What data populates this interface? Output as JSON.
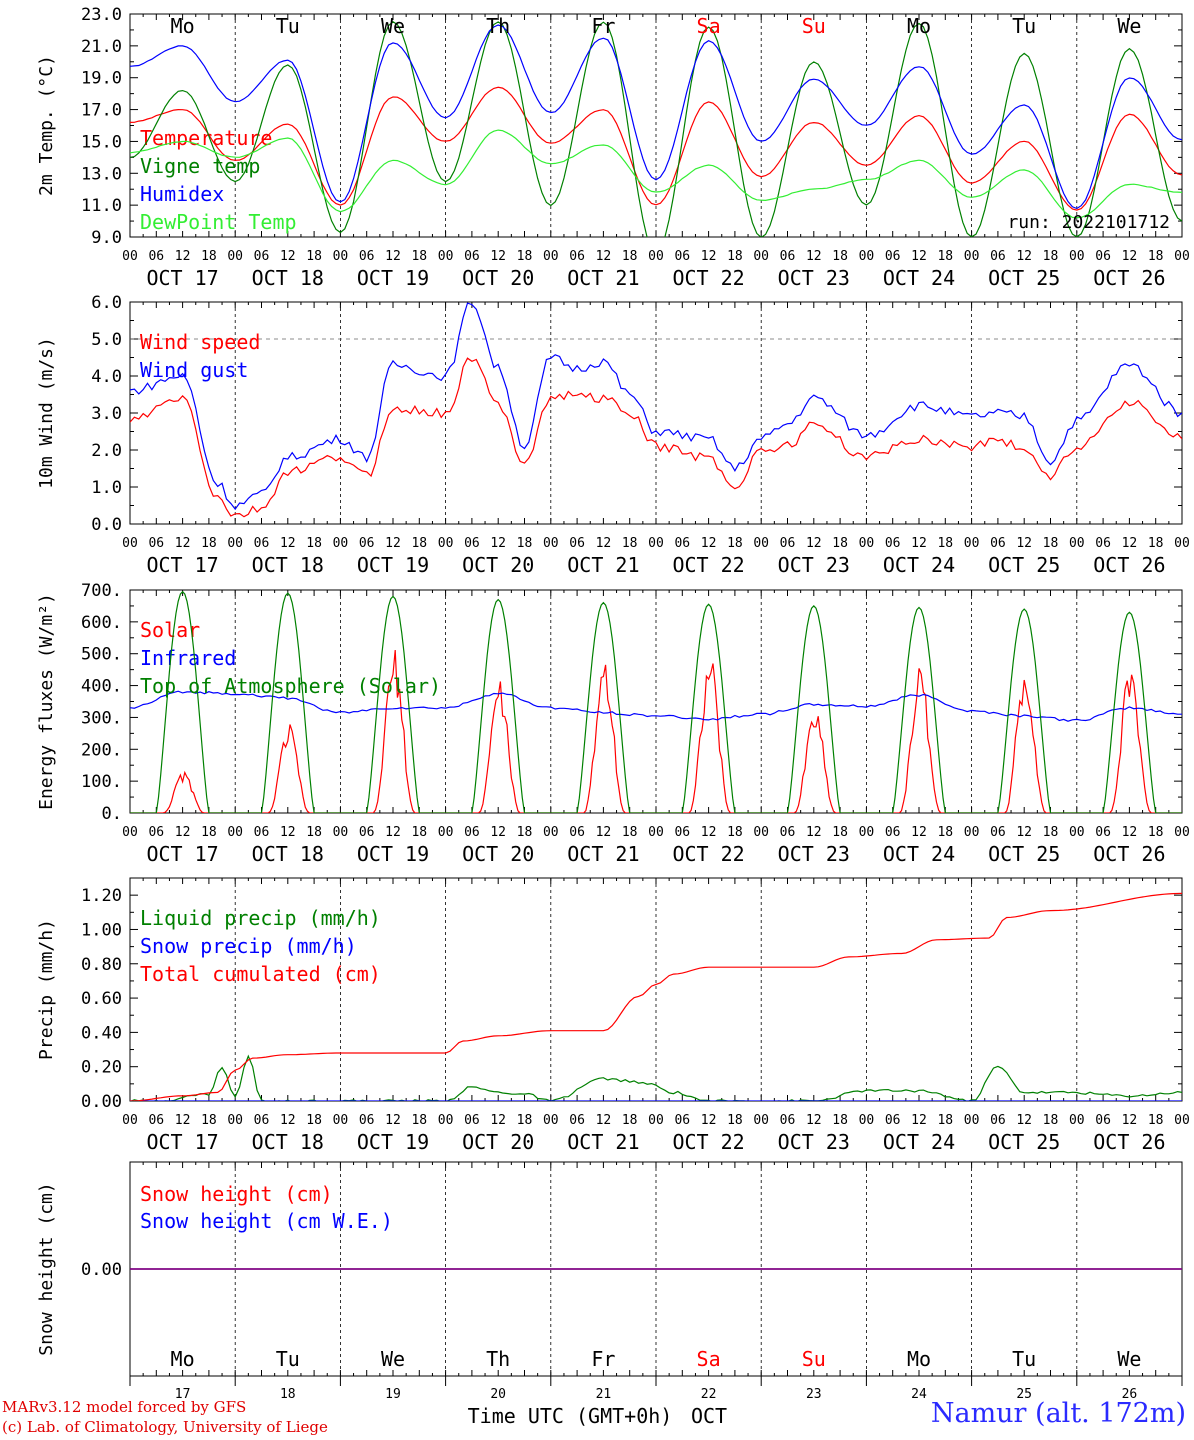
{
  "chart_data": [
    {
      "type": "line",
      "ylabel": "2m Temp. (°C)",
      "ylim": [
        9,
        23
      ],
      "yticks": [
        "9.0",
        "11.0",
        "13.0",
        "15.0",
        "17.0",
        "19.0",
        "21.0",
        "23.0"
      ],
      "run_label": "run: 2022101712",
      "day_names_top": true,
      "series": [
        {
          "name": "Temperature",
          "color": "#ff0000",
          "x": [
            0,
            12,
            24,
            36,
            48,
            60,
            72,
            84,
            96,
            108,
            120,
            132,
            144,
            156,
            168,
            180,
            192,
            204,
            216,
            228,
            240
          ],
          "y": [
            16.2,
            17.0,
            13.8,
            16.1,
            11.0,
            17.8,
            15.0,
            18.4,
            14.9,
            17.0,
            11.0,
            17.5,
            12.8,
            16.2,
            13.5,
            16.6,
            12.4,
            15.0,
            10.7,
            16.7,
            12.9
          ]
        },
        {
          "name": "Vigne temp",
          "color": "#008000",
          "x": [
            0,
            12,
            24,
            36,
            48,
            60,
            72,
            84,
            96,
            108,
            120,
            132,
            144,
            156,
            168,
            180,
            192,
            204,
            216,
            228,
            240
          ],
          "y": [
            14.0,
            18.2,
            12.5,
            19.8,
            9.3,
            22.5,
            12.5,
            22.5,
            11.0,
            22.5,
            8.0,
            22.2,
            9.0,
            20.0,
            11.0,
            22.4,
            9.0,
            20.5,
            9.0,
            20.8,
            10.0
          ]
        },
        {
          "name": "Humidex",
          "color": "#0000ff",
          "x": [
            0,
            12,
            24,
            36,
            48,
            60,
            72,
            84,
            96,
            108,
            120,
            132,
            144,
            156,
            168,
            180,
            192,
            204,
            216,
            228,
            240
          ],
          "y": [
            19.7,
            21.0,
            17.5,
            20.1,
            11.2,
            21.2,
            16.5,
            22.3,
            16.8,
            21.5,
            12.6,
            21.3,
            15.0,
            18.9,
            16.0,
            19.7,
            14.2,
            17.3,
            10.8,
            19.0,
            15.1
          ]
        },
        {
          "name": "DewPoint Temp",
          "color": "#33ee33",
          "x": [
            0,
            12,
            24,
            36,
            48,
            60,
            72,
            84,
            96,
            108,
            120,
            132,
            144,
            156,
            168,
            180,
            192,
            204,
            216,
            228,
            240
          ],
          "y": [
            14.3,
            15.0,
            14.0,
            15.2,
            10.6,
            13.8,
            12.3,
            15.7,
            13.6,
            14.8,
            11.8,
            13.5,
            11.3,
            12.0,
            12.6,
            13.8,
            11.5,
            13.2,
            10.2,
            12.3,
            11.8
          ]
        }
      ]
    },
    {
      "type": "line",
      "ylabel": "10m Wind (m/s)",
      "ylim": [
        0,
        6
      ],
      "yticks": [
        "0.0",
        "1.0",
        "2.0",
        "3.0",
        "4.0",
        "5.0",
        "6.0"
      ],
      "dashed_line": 5.0,
      "series": [
        {
          "name": "Wind speed",
          "color": "#ff0000",
          "x": [
            0,
            12,
            20,
            24,
            30,
            36,
            48,
            54,
            60,
            72,
            78,
            84,
            90,
            96,
            102,
            108,
            114,
            120,
            132,
            138,
            144,
            150,
            156,
            168,
            180,
            192,
            198,
            204,
            210,
            216,
            228,
            240
          ],
          "y": [
            2.8,
            3.4,
            0.7,
            0.2,
            0.4,
            1.4,
            1.8,
            1.3,
            3.1,
            3.0,
            4.5,
            3.2,
            1.7,
            3.4,
            3.5,
            3.4,
            3.0,
            2.1,
            1.8,
            1.0,
            2.0,
            2.1,
            2.7,
            1.8,
            2.3,
            2.1,
            2.3,
            2.0,
            1.3,
            2.1,
            3.3,
            2.3
          ]
        },
        {
          "name": "Wind gust",
          "color": "#0000ff",
          "x": [
            0,
            12,
            20,
            24,
            30,
            36,
            48,
            54,
            60,
            72,
            78,
            84,
            90,
            96,
            102,
            108,
            114,
            120,
            132,
            138,
            144,
            150,
            156,
            168,
            180,
            192,
            198,
            204,
            210,
            216,
            228,
            240
          ],
          "y": [
            3.6,
            4.0,
            1.1,
            0.5,
            0.8,
            1.8,
            2.3,
            1.8,
            4.3,
            4.0,
            6.0,
            4.2,
            2.1,
            4.5,
            4.2,
            4.4,
            3.5,
            2.5,
            2.3,
            1.5,
            2.3,
            2.7,
            3.4,
            2.4,
            3.2,
            2.9,
            3.0,
            2.9,
            1.7,
            2.8,
            4.3,
            3.0
          ]
        }
      ]
    },
    {
      "type": "line",
      "ylabel": "Energy fluxes (W/m²)",
      "ylim": [
        0,
        700
      ],
      "yticks": [
        "0.",
        "100.",
        "200.",
        "300.",
        "400.",
        "500.",
        "600.",
        "700."
      ],
      "series": [
        {
          "name": "Solar",
          "color": "#ff0000",
          "peaks": [
            115,
            245,
            450,
            370,
            435,
            440,
            300,
            405,
            410,
            410
          ]
        },
        {
          "name": "Infrared",
          "color": "#0000ff",
          "x": [
            0,
            12,
            24,
            36,
            48,
            60,
            72,
            84,
            96,
            108,
            120,
            132,
            144,
            156,
            168,
            180,
            192,
            204,
            216,
            228,
            240
          ],
          "y": [
            330,
            380,
            375,
            360,
            315,
            330,
            330,
            375,
            330,
            315,
            305,
            295,
            310,
            340,
            335,
            370,
            320,
            305,
            290,
            330,
            310
          ]
        },
        {
          "name": "Top of Atmosphere (Solar)",
          "color": "#008000",
          "peaks": [
            695,
            690,
            680,
            670,
            660,
            655,
            650,
            645,
            640,
            630
          ]
        }
      ]
    },
    {
      "type": "line",
      "ylabel": "Precip (mm/h)",
      "ylim": [
        0,
        1.3
      ],
      "yticks": [
        "0.00",
        "0.20",
        "0.40",
        "0.60",
        "0.80",
        "1.00",
        "1.20"
      ],
      "series": [
        {
          "name": "Liquid precip (mm/h)",
          "color": "#008000",
          "x": [
            0,
            6,
            18,
            21,
            24,
            27,
            30,
            36,
            48,
            72,
            78,
            84,
            90,
            96,
            108,
            112,
            118,
            124,
            132,
            144,
            156,
            168,
            180,
            192,
            198,
            204,
            214,
            228,
            240
          ],
          "y": [
            0,
            0,
            0.04,
            0.2,
            0.02,
            0.26,
            0,
            0,
            0,
            0,
            0.08,
            0.05,
            0.04,
            0,
            0.13,
            0.12,
            0.1,
            0.05,
            0,
            0,
            0,
            0.06,
            0.06,
            0,
            0.2,
            0.05,
            0.05,
            0.03,
            0.05
          ]
        },
        {
          "name": "Snow precip (mm/h)",
          "color": "#0000ff",
          "x": [
            0,
            240
          ],
          "y": [
            0,
            0
          ]
        },
        {
          "name": "Total cumulated (cm)",
          "color": "#ff0000",
          "x": [
            0,
            12,
            20,
            24,
            28,
            36,
            48,
            72,
            76,
            84,
            96,
            108,
            116,
            120,
            124,
            132,
            156,
            164,
            176,
            184,
            196,
            200,
            210,
            240
          ],
          "y": [
            0,
            0.03,
            0.05,
            0.18,
            0.25,
            0.27,
            0.28,
            0.28,
            0.35,
            0.38,
            0.41,
            0.41,
            0.61,
            0.68,
            0.74,
            0.78,
            0.78,
            0.84,
            0.86,
            0.94,
            0.95,
            1.07,
            1.11,
            1.21
          ]
        }
      ]
    },
    {
      "type": "line",
      "ylabel": "Snow height (cm)",
      "yticks": [
        "0.00"
      ],
      "series": [
        {
          "name": "Snow height (cm)",
          "color": "#ff0000",
          "x": [
            0,
            240
          ],
          "y": [
            0,
            0
          ]
        },
        {
          "name": "Snow height (cm W.E.)",
          "color": "#0000ff",
          "x": [
            0,
            240
          ],
          "y": [
            0,
            0
          ]
        }
      ],
      "day_numbers": [
        "17",
        "18",
        "19",
        "20",
        "21",
        "22",
        "23",
        "24",
        "25",
        "26"
      ]
    }
  ],
  "days": [
    {
      "name": "Mo",
      "date": "OCT 17",
      "weekend": false
    },
    {
      "name": "Tu",
      "date": "OCT 18",
      "weekend": false
    },
    {
      "name": "We",
      "date": "OCT 19",
      "weekend": false
    },
    {
      "name": "Th",
      "date": "OCT 20",
      "weekend": false
    },
    {
      "name": "Fr",
      "date": "OCT 21",
      "weekend": false
    },
    {
      "name": "Sa",
      "date": "OCT 22",
      "weekend": true
    },
    {
      "name": "Su",
      "date": "OCT 23",
      "weekend": true
    },
    {
      "name": "Mo",
      "date": "OCT 24",
      "weekend": false
    },
    {
      "name": "Tu",
      "date": "OCT 25",
      "weekend": false
    },
    {
      "name": "We",
      "date": "OCT 26",
      "weekend": false
    }
  ],
  "hour_ticks": [
    "00",
    "06",
    "12",
    "18"
  ],
  "x_title": "Time UTC (GMT+0h)",
  "x_month": "OCT",
  "credits": {
    "line1": "MARv3.12 model forced by GFS",
    "line2": "(c) Lab. of Climatology, University of Liege"
  },
  "station": "Namur (alt. 172m)",
  "colors": {
    "weekday": "#000000",
    "weekend": "#ff0000"
  }
}
